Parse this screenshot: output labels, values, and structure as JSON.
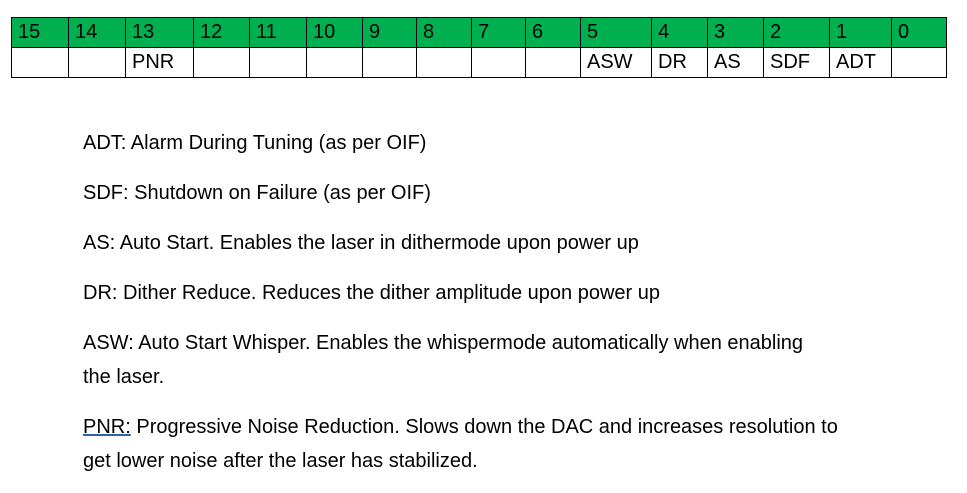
{
  "register_table": {
    "header_color": "#00b050",
    "bits": [
      "15",
      "14",
      "13",
      "12",
      "11",
      "10",
      "9",
      "8",
      "7",
      "6",
      "5",
      "4",
      "3",
      "2",
      "1",
      "0"
    ],
    "fields": [
      "",
      "",
      "PNR",
      "",
      "",
      "",
      "",
      "",
      "",
      "",
      "ASW",
      "DR",
      "AS",
      "SDF",
      "ADT",
      ""
    ]
  },
  "definitions": [
    {
      "lines": [
        "ADT: Alarm During Tuning (as per OIF)"
      ]
    },
    {
      "lines": [
        "SDF: Shutdown on Failure (as per OIF)"
      ]
    },
    {
      "lines": [
        "AS: Auto Start. Enables the laser in dithermode upon power up"
      ]
    },
    {
      "lines": [
        "DR: Dither Reduce. Reduces the dither amplitude upon power up"
      ]
    },
    {
      "lines": [
        "ASW: Auto Start Whisper. Enables the whispermode automatically when enabling",
        "the laser."
      ]
    },
    {
      "term": "PNR:",
      "lines": [
        " Progressive Noise Reduction. Slows down the DAC and increases resolution to",
        "get lower noise after the laser has stabilized."
      ]
    }
  ]
}
